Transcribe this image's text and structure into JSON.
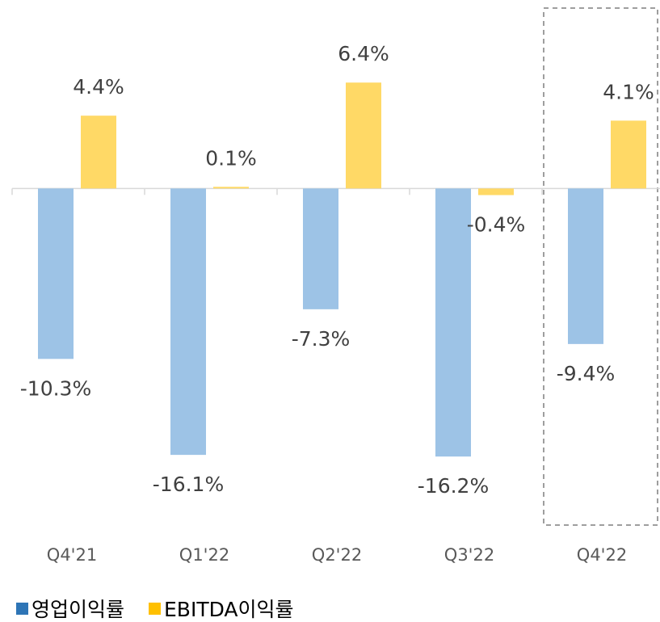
{
  "chart_data": {
    "type": "bar",
    "categories": [
      "Q4'21",
      "Q1'22",
      "Q2'22",
      "Q3'22",
      "Q4'22"
    ],
    "series": [
      {
        "name": "영업이익률",
        "color": "#9dc3e6",
        "legend_color": "#2e75b6",
        "values": [
          -10.3,
          -16.1,
          -7.3,
          -16.2,
          -9.4
        ],
        "value_labels": [
          "-10.3%",
          "-16.1%",
          "-7.3%",
          "-16.2%",
          "-9.4%"
        ]
      },
      {
        "name": "EBITDA이익률",
        "color": "#ffd966",
        "legend_color": "#ffc000",
        "values": [
          4.4,
          0.1,
          6.4,
          -0.4,
          4.1
        ],
        "value_labels": [
          "4.4%",
          "0.1%",
          "6.4%",
          "-0.4%",
          "4.1%"
        ]
      }
    ],
    "ylim": [
      -20,
      11
    ]
  }
}
